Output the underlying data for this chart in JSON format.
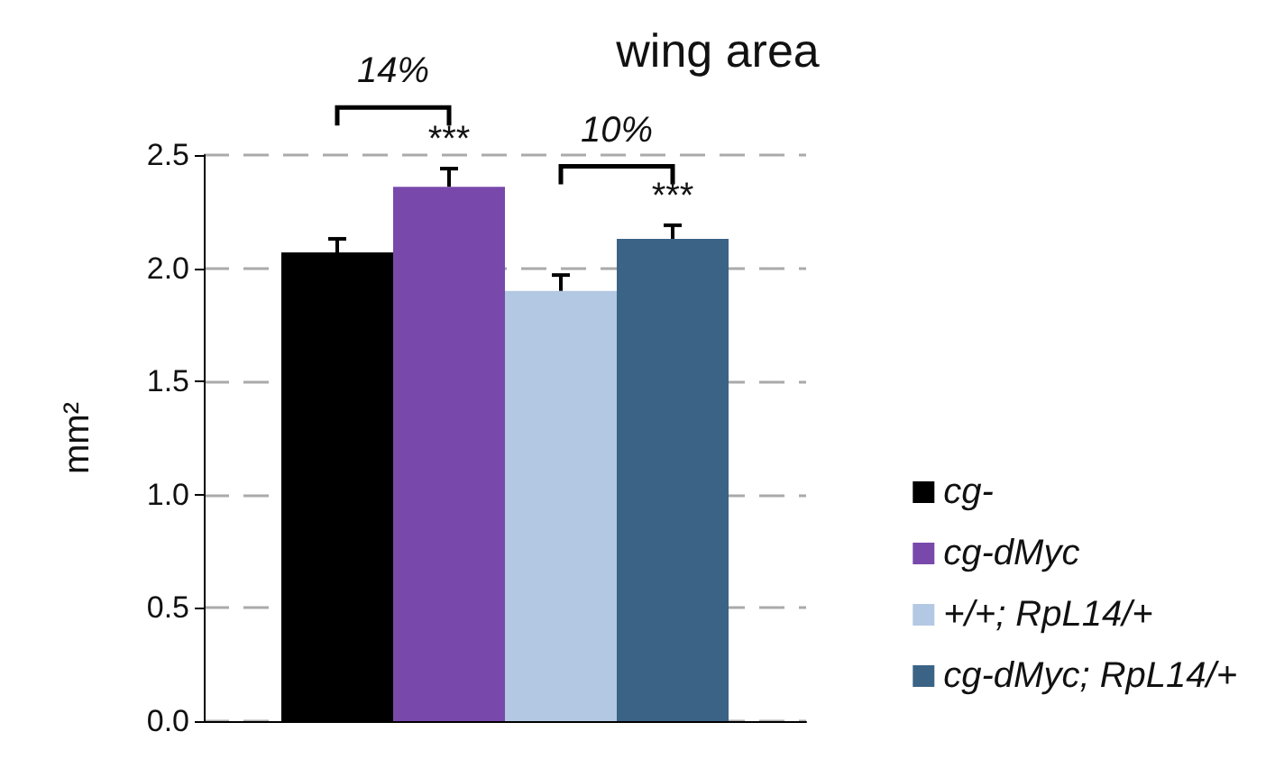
{
  "chart_data": {
    "type": "bar",
    "title": "wing area",
    "ylabel": "mm²",
    "categories": [
      null
    ],
    "series": [
      {
        "name": "cg-",
        "color": "#000000",
        "values": [
          2.07
        ],
        "errors": [
          [
            2.07,
            2.13
          ]
        ]
      },
      {
        "name": "cg-dMyc",
        "color": "#7849ab",
        "values": [
          2.36
        ],
        "errors": [
          [
            2.36,
            2.44
          ]
        ]
      },
      {
        "name": "+/+; RpL14/+",
        "color": "#b3c8e2",
        "values": [
          1.9
        ],
        "errors": [
          [
            1.9,
            1.97
          ]
        ]
      },
      {
        "name": "cg-dMyc; RpL14/+",
        "color": "#3b6385",
        "values": [
          2.13
        ],
        "errors": [
          [
            2.13,
            2.19
          ]
        ]
      }
    ],
    "ylim": [
      0,
      2.5
    ],
    "yticks": [
      {
        "value": 0,
        "label": "0.0"
      },
      0.5,
      {
        "value": 1,
        "label": "1.0"
      },
      1.5,
      {
        "value": 2,
        "label": "2.0"
      },
      2.5
    ],
    "grid": "y",
    "legend": "right",
    "annotations": [
      "14%",
      "***",
      "10%",
      "***"
    ]
  }
}
